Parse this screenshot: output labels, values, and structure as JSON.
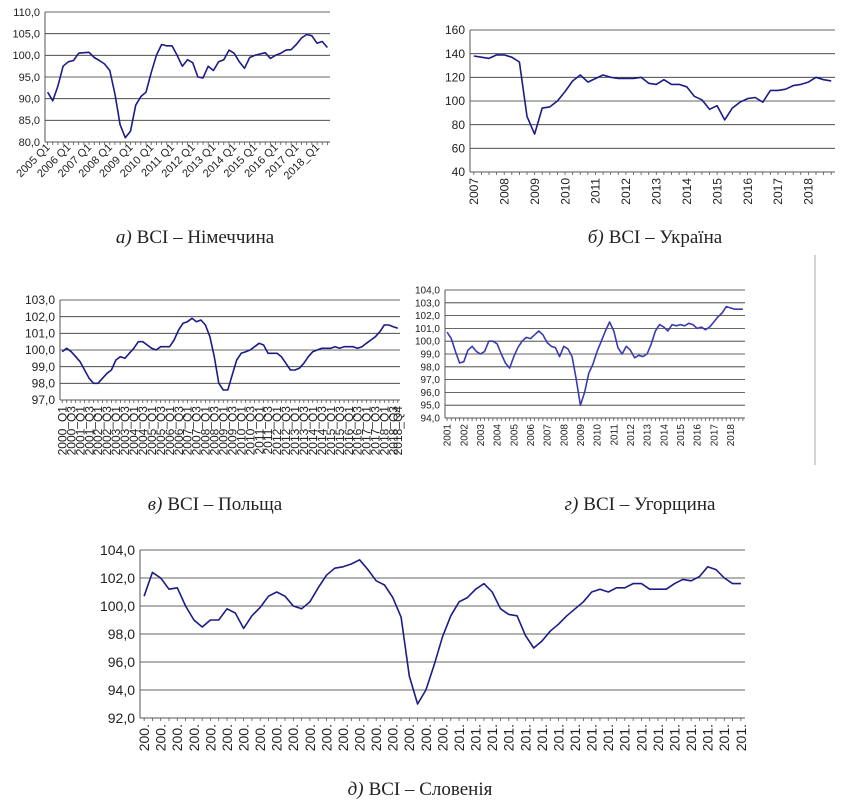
{
  "chart_data": [
    {
      "type": "line",
      "label": "а)",
      "title": "BCI – Німеччина",
      "color": "#1c1c86",
      "grid": true,
      "ylim": [
        80,
        110
      ],
      "yticks": [
        {
          "value": 80,
          "label": "80,0"
        },
        {
          "value": 85,
          "label": "85,0"
        },
        {
          "value": 90,
          "label": "90,0"
        },
        {
          "value": 95,
          "label": "95,0"
        },
        {
          "value": 100,
          "label": "100,0"
        },
        {
          "value": 105,
          "label": "105,0"
        },
        {
          "value": 110,
          "label": "110,0"
        }
      ],
      "categories": [
        "2005 Q1",
        null,
        null,
        null,
        "2006 Q1",
        null,
        null,
        null,
        "2007 Q1",
        null,
        null,
        null,
        "2008 Q1",
        null,
        null,
        null,
        "2009 Q1",
        null,
        null,
        null,
        "2010 Q1",
        null,
        null,
        null,
        "2011 Q1",
        null,
        null,
        null,
        "2012 Q1",
        null,
        null,
        null,
        "2013 Q1",
        null,
        null,
        null,
        "2014 Q1",
        null,
        null,
        null,
        "2015 Q1",
        null,
        null,
        null,
        "2016 Q1",
        null,
        null,
        null,
        "2017 Q1",
        null,
        null,
        null,
        "2018_Q1",
        null,
        null
      ],
      "values": [
        91.5,
        89.5,
        93,
        97.5,
        98.5,
        98.8,
        100.5,
        100.6,
        100.7,
        99.5,
        98.8,
        98,
        96.5,
        91,
        84,
        81,
        82.5,
        88.5,
        90.5,
        91.5,
        96,
        100,
        102.5,
        102.2,
        102.2,
        100,
        97.5,
        99,
        98.3,
        95,
        94.8,
        97.5,
        96.5,
        98.5,
        99,
        101.2,
        100.5,
        98.5,
        97,
        99.5,
        100,
        100.3,
        100.6,
        99.3,
        100,
        100.5,
        101.2,
        101.3,
        102.5,
        104,
        104.8,
        104.5,
        102.8,
        103.2,
        101.8
      ]
    },
    {
      "type": "line",
      "label": "б)",
      "title": "BCI – Україна",
      "color": "#1c1c86",
      "grid": true,
      "ylim": [
        40,
        160
      ],
      "yticks": [
        40,
        60,
        80,
        100,
        120,
        140,
        160
      ],
      "categories": [
        "2007",
        null,
        null,
        null,
        "2008",
        null,
        null,
        null,
        "2009",
        null,
        null,
        null,
        "2010",
        null,
        null,
        null,
        "2011",
        null,
        null,
        null,
        "2012",
        null,
        null,
        null,
        "2013",
        null,
        null,
        null,
        "2014",
        null,
        null,
        null,
        "2015",
        null,
        null,
        null,
        "2016",
        null,
        null,
        null,
        "2017",
        null,
        null,
        null,
        "2018",
        null,
        null,
        null
      ],
      "values": [
        138,
        137,
        136,
        139,
        139,
        137,
        133,
        87,
        72,
        94,
        95,
        100,
        108,
        117,
        122,
        116,
        119,
        122,
        120,
        119,
        119,
        119,
        120,
        115,
        114,
        118,
        114,
        114,
        112,
        104,
        101,
        93,
        96,
        84,
        94,
        99,
        102,
        103,
        99,
        109,
        109,
        110,
        113,
        114,
        116,
        120,
        118,
        117
      ]
    },
    {
      "type": "line",
      "label": "в)",
      "title": "BCI – Польща",
      "color": "#1c1c86",
      "grid": true,
      "ylim": [
        97,
        103
      ],
      "yticks": [
        {
          "value": 97,
          "label": "97,0"
        },
        {
          "value": 98,
          "label": "98,0"
        },
        {
          "value": 99,
          "label": "99,0"
        },
        {
          "value": 100,
          "label": "100,0"
        },
        {
          "value": 101,
          "label": "101,0"
        },
        {
          "value": 102,
          "label": "102,0"
        },
        {
          "value": 103,
          "label": "103,0"
        }
      ],
      "categories": [
        "2000_Q1",
        null,
        "2000_Q3",
        null,
        "2001_Q1",
        null,
        "2001_Q3",
        null,
        "2002_Q1",
        null,
        "2002_Q3",
        null,
        "2003_Q1",
        null,
        "2003_Q3",
        null,
        "2004_Q1",
        null,
        "2004_Q3",
        null,
        "2005_Q1",
        null,
        "2005_Q3",
        null,
        "2006_Q1",
        null,
        "2006_Q3",
        null,
        "2007_Q1",
        null,
        "2007_Q3",
        null,
        "2008_Q1",
        null,
        "2008_Q3",
        null,
        "2009_Q1",
        null,
        "2009_Q3",
        null,
        "2010_Q1",
        null,
        "2010_Q3",
        null,
        "2011_Q1",
        null,
        "2011_Q3",
        null,
        "2012_Q1",
        null,
        "2012_Q3",
        null,
        "2013_Q1",
        null,
        "2013_Q3",
        null,
        "2014_Q1",
        null,
        "2014_Q3",
        null,
        "2015_Q1",
        null,
        "2015_Q3",
        null,
        "2016_Q1",
        null,
        "2016_Q3",
        null,
        "2017_Q1",
        null,
        "2017_Q3",
        null,
        "2018_Q1",
        null,
        "2018_Q3",
        "2018_Q4"
      ],
      "values": [
        99.9,
        100.1,
        99.9,
        99.6,
        99.3,
        98.8,
        98.3,
        98.0,
        98.0,
        98.3,
        98.6,
        98.8,
        99.4,
        99.6,
        99.5,
        99.8,
        100.1,
        100.5,
        100.5,
        100.3,
        100.1,
        100.0,
        100.2,
        100.2,
        100.2,
        100.6,
        101.2,
        101.6,
        101.7,
        101.9,
        101.7,
        101.8,
        101.5,
        100.8,
        99.6,
        98.0,
        97.6,
        97.6,
        98.5,
        99.4,
        99.8,
        99.9,
        100.0,
        100.2,
        100.4,
        100.3,
        99.8,
        99.8,
        99.8,
        99.6,
        99.2,
        98.8,
        98.8,
        98.9,
        99.2,
        99.6,
        99.9,
        100.0,
        100.1,
        100.1,
        100.1,
        100.2,
        100.1,
        100.2,
        100.2,
        100.2,
        100.1,
        100.2,
        100.4,
        100.6,
        100.8,
        101.1,
        101.5,
        101.5,
        101.4,
        101.3
      ]
    },
    {
      "type": "line",
      "label": "г)",
      "title": "BCI – Угорщина",
      "color": "#3b3bb0",
      "grid": true,
      "ylim": [
        94,
        104
      ],
      "yticks": [
        {
          "value": 94,
          "label": "94,0"
        },
        {
          "value": 95,
          "label": "95,0"
        },
        {
          "value": 96,
          "label": "96,0"
        },
        {
          "value": 97,
          "label": "97,0"
        },
        {
          "value": 98,
          "label": "98,0"
        },
        {
          "value": 99,
          "label": "99,0"
        },
        {
          "value": 100,
          "label": "100,0"
        },
        {
          "value": 101,
          "label": "101,0"
        },
        {
          "value": 102,
          "label": "102,0"
        },
        {
          "value": 103,
          "label": "103,0"
        },
        {
          "value": 104,
          "label": "104,0"
        }
      ],
      "categories": [
        "2001",
        null,
        null,
        null,
        "2002",
        null,
        null,
        null,
        "2003",
        null,
        null,
        null,
        "2004",
        null,
        null,
        null,
        "2005",
        null,
        null,
        null,
        "2006",
        null,
        null,
        null,
        "2007",
        null,
        null,
        null,
        "2008",
        null,
        null,
        null,
        "2009",
        null,
        null,
        null,
        "2010",
        null,
        null,
        null,
        "2011",
        null,
        null,
        null,
        "2012",
        null,
        null,
        null,
        "2013",
        null,
        null,
        null,
        "2014",
        null,
        null,
        null,
        "2015",
        null,
        null,
        null,
        "2016",
        null,
        null,
        null,
        "2017",
        null,
        null,
        null,
        "2018",
        null,
        null,
        null
      ],
      "values": [
        100.7,
        100.2,
        99.2,
        98.3,
        98.4,
        99.3,
        99.6,
        99.2,
        99.0,
        99.2,
        100.0,
        100.0,
        99.8,
        99.0,
        98.3,
        97.9,
        98.8,
        99.5,
        100.0,
        100.3,
        100.2,
        100.5,
        100.8,
        100.5,
        99.9,
        99.6,
        99.5,
        98.8,
        99.6,
        99.4,
        98.8,
        97.0,
        95.0,
        96.0,
        97.5,
        98.2,
        99.2,
        100.0,
        100.8,
        101.5,
        100.8,
        99.5,
        99.0,
        99.6,
        99.3,
        98.7,
        98.9,
        98.8,
        99.0,
        99.8,
        100.8,
        101.3,
        101.1,
        100.8,
        101.3,
        101.2,
        101.3,
        101.2,
        101.4,
        101.3,
        101.0,
        101.1,
        100.9,
        101.1,
        101.5,
        101.9,
        102.2,
        102.7,
        102.6,
        102.5,
        102.5,
        102.5
      ]
    },
    {
      "type": "line",
      "label": "д)",
      "title": "BCI – Словенія",
      "color": "#1c1c86",
      "grid": true,
      "ylim": [
        92,
        104
      ],
      "yticks": [
        {
          "value": 92,
          "label": "92,0"
        },
        {
          "value": 94,
          "label": "94,0"
        },
        {
          "value": 96,
          "label": "96,0"
        },
        {
          "value": 98,
          "label": "98,0"
        },
        {
          "value": 100,
          "label": "100,0"
        },
        {
          "value": 102,
          "label": "102,0"
        },
        {
          "value": 104,
          "label": "104,0"
        }
      ],
      "categories": [
        "200.",
        null,
        "200.",
        null,
        "200.",
        null,
        "200.",
        null,
        "200.",
        null,
        "200.",
        null,
        "200.",
        null,
        "200.",
        null,
        "200.",
        null,
        "200.",
        null,
        "200.",
        null,
        "200.",
        null,
        "200.",
        null,
        "200.",
        null,
        "200.",
        null,
        "200.",
        null,
        "200.",
        null,
        "200.",
        null,
        "200.",
        null,
        "201.",
        null,
        "201.",
        null,
        "201.",
        null,
        "201.",
        null,
        "201.",
        null,
        "201.",
        null,
        "201.",
        null,
        "201.",
        null,
        "201.",
        null,
        "201.",
        null,
        "201.",
        null,
        "201.",
        null,
        "201.",
        null,
        "201.",
        null,
        "201.",
        null,
        "201.",
        null,
        "201.",
        null,
        "201."
      ],
      "values": [
        100.7,
        102.4,
        102.0,
        101.2,
        101.3,
        100.0,
        99.0,
        98.5,
        99.0,
        99.0,
        99.8,
        99.5,
        98.4,
        99.3,
        99.9,
        100.7,
        101.0,
        100.7,
        100.0,
        99.8,
        100.3,
        101.3,
        102.2,
        102.7,
        102.8,
        103.0,
        103.3,
        102.6,
        101.8,
        101.5,
        100.6,
        99.2,
        95.0,
        93.0,
        94.0,
        95.8,
        97.8,
        99.3,
        100.3,
        100.6,
        101.2,
        101.6,
        101.0,
        99.8,
        99.4,
        99.3,
        97.9,
        97.0,
        97.5,
        98.2,
        98.7,
        99.3,
        99.8,
        100.3,
        101.0,
        101.2,
        101.0,
        101.3,
        101.3,
        101.6,
        101.6,
        101.2,
        101.2,
        101.2,
        101.6,
        101.9,
        101.8,
        102.1,
        102.8,
        102.6,
        102.0,
        101.6,
        101.6
      ]
    }
  ]
}
